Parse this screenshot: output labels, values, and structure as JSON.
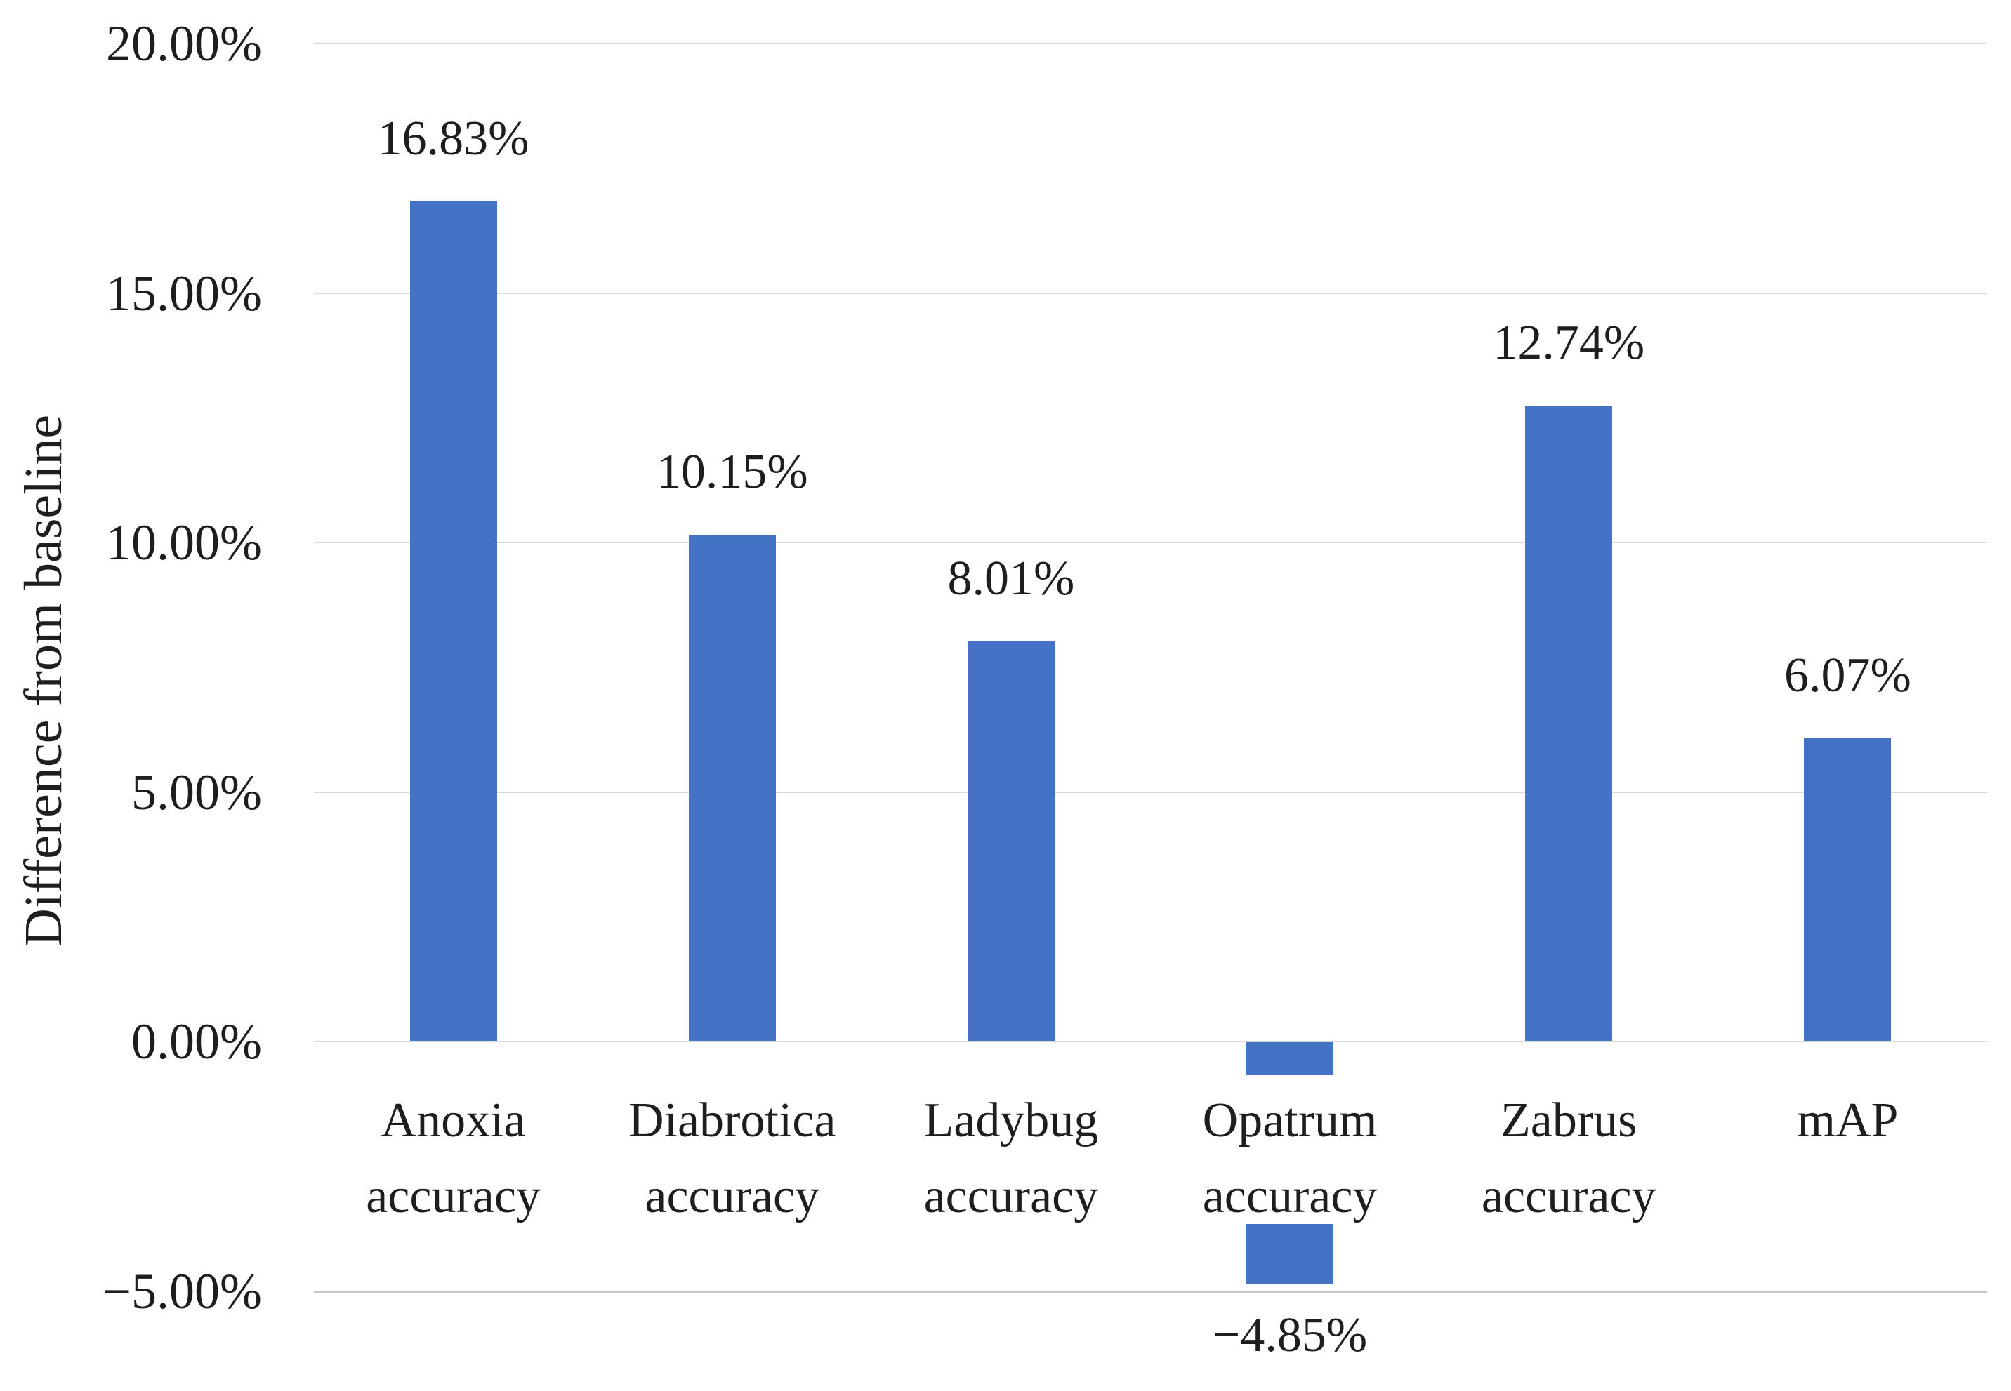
{
  "chart_data": {
    "type": "bar",
    "title": "",
    "xlabel": "",
    "ylabel": "Difference from baseline",
    "ylim": [
      -5,
      20
    ],
    "grid": true,
    "legend": false,
    "bar_color": "#4472c4",
    "gridline_color": "#d9d9d9",
    "text_color": "#1e1e1e",
    "yticks": [
      {
        "label": "20.00%",
        "value": 20
      },
      {
        "label": "15.00%",
        "value": 15
      },
      {
        "label": "10.00%",
        "value": 10
      },
      {
        "label": "5.00%",
        "value": 5
      },
      {
        "label": "0.00%",
        "value": 0
      },
      {
        "label": "−5.00%",
        "value": -5
      }
    ],
    "categories": [
      {
        "lines": [
          "Anoxia",
          "accuracy"
        ],
        "value": 16.83,
        "data_label": "16.83%"
      },
      {
        "lines": [
          "Diabrotica",
          "accuracy"
        ],
        "value": 10.15,
        "data_label": "10.15%"
      },
      {
        "lines": [
          "Ladybug",
          "accuracy"
        ],
        "value": 8.01,
        "data_label": "8.01%"
      },
      {
        "lines": [
          "Opatrum",
          "accuracy"
        ],
        "value": -4.85,
        "data_label": "−4.85%"
      },
      {
        "lines": [
          "Zabrus",
          "accuracy"
        ],
        "value": 12.74,
        "data_label": "12.74%"
      },
      {
        "lines": [
          "mAP"
        ],
        "value": 6.07,
        "data_label": "6.07%"
      }
    ]
  }
}
